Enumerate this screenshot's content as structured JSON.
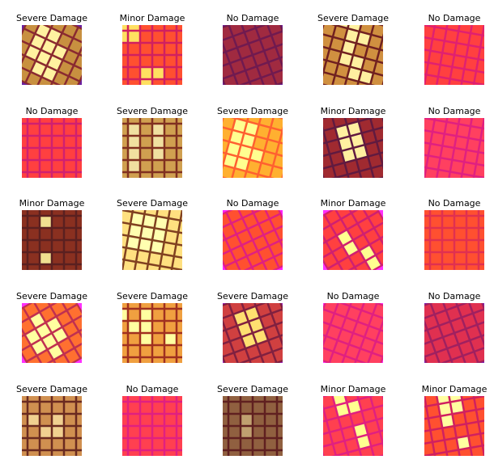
{
  "grid": {
    "rows": [
      [
        "Severe Damage",
        "Minor Damage",
        "No Damage",
        "Severe Damage",
        "No Damage"
      ],
      [
        "No Damage",
        "Severe Damage",
        "Severe Damage",
        "Minor Damage",
        "No Damage"
      ],
      [
        "Minor Damage",
        "Severe Damage",
        "No Damage",
        "Minor Damage",
        "No Damage"
      ],
      [
        "Severe Damage",
        "Severe Damage",
        "Severe Damage",
        "No Damage",
        "No Damage"
      ],
      [
        "Severe Damage",
        "No Damage",
        "Severe Damage",
        "Minor Damage",
        "Minor Damage"
      ]
    ]
  }
}
